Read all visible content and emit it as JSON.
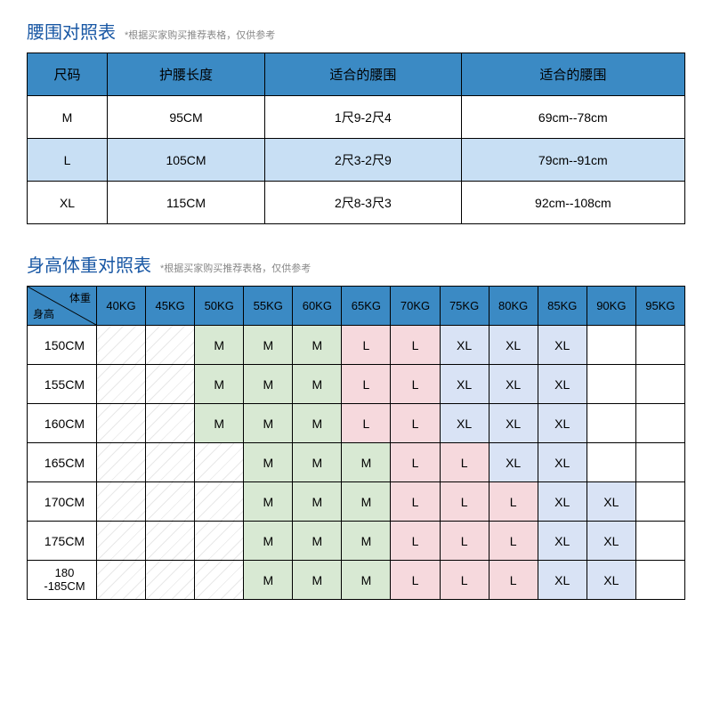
{
  "colors": {
    "title": "#1857a4",
    "header_bg": "#3b8ac4",
    "alt_row_bg": "#c8dff4",
    "m_bg": "#d8e9d3",
    "l_bg": "#f6d9dd",
    "xl_bg": "#d9e3f5"
  },
  "table1": {
    "title": "腰围对照表",
    "subtitle": "*根据买家购买推荐表格，仅供参考",
    "headers": [
      "尺码",
      "护腰长度",
      "适合的腰围",
      "适合的腰围"
    ],
    "rows": [
      [
        "M",
        "95CM",
        "1尺9-2尺4",
        "69cm--78cm"
      ],
      [
        "L",
        "105CM",
        "2尺3-2尺9",
        "79cm--91cm"
      ],
      [
        "XL",
        "115CM",
        "2尺8-3尺3",
        "92cm--108cm"
      ]
    ]
  },
  "table2": {
    "title": "身高体重对照表",
    "subtitle": "*根据买家购买推荐表格，仅供参考",
    "diag_top": "体重",
    "diag_bot": "身高",
    "weight_cols": [
      "40KG",
      "45KG",
      "50KG",
      "55KG",
      "60KG",
      "65KG",
      "70KG",
      "75KG",
      "80KG",
      "85KG",
      "90KG",
      "95KG"
    ],
    "height_rows": [
      "150CM",
      "155CM",
      "160CM",
      "165CM",
      "170CM",
      "175CM",
      "180\n-185CM"
    ],
    "cells": [
      [
        "/",
        "/",
        "M",
        "M",
        "M",
        "L",
        "L",
        "XL",
        "XL",
        "XL",
        "",
        ""
      ],
      [
        "/",
        "/",
        "M",
        "M",
        "M",
        "L",
        "L",
        "XL",
        "XL",
        "XL",
        "",
        ""
      ],
      [
        "/",
        "/",
        "M",
        "M",
        "M",
        "L",
        "L",
        "XL",
        "XL",
        "XL",
        "",
        ""
      ],
      [
        "/",
        "/",
        "/",
        "M",
        "M",
        "M",
        "L",
        "L",
        "XL",
        "XL",
        "",
        ""
      ],
      [
        "/",
        "/",
        "/",
        "M",
        "M",
        "M",
        "L",
        "L",
        "L",
        "XL",
        "XL",
        ""
      ],
      [
        "/",
        "/",
        "/",
        "M",
        "M",
        "M",
        "L",
        "L",
        "L",
        "XL",
        "XL",
        ""
      ],
      [
        "/",
        "/",
        "/",
        "M",
        "M",
        "M",
        "L",
        "L",
        "L",
        "XL",
        "XL",
        ""
      ]
    ]
  }
}
